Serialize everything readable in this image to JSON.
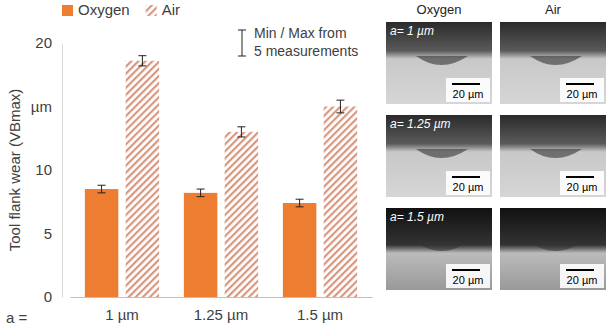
{
  "chart_data": {
    "type": "bar",
    "y_label": "Tool flank wear (VBmax)",
    "x_label": "a =",
    "categories": [
      "1 µm",
      "1.25 µm",
      "1.5 µm"
    ],
    "series": [
      {
        "name": "Oxygen",
        "color": "#ed7d31",
        "values": [
          8.5,
          8.2,
          7.4
        ],
        "errors": [
          0.3,
          0.3,
          0.3
        ]
      },
      {
        "name": "Air",
        "color": "#d9977f",
        "values": [
          18.6,
          13.0,
          15.0
        ],
        "errors": [
          0.4,
          0.4,
          0.5
        ]
      }
    ],
    "annotation": [
      "Min / Max from",
      "5 measurements"
    ],
    "ylim": [
      0,
      20
    ],
    "yticks": [
      0,
      5,
      10,
      {
        "value": 15,
        "label": "µm"
      },
      20
    ],
    "grid": false,
    "legend": "top"
  },
  "micrographs": {
    "columns": [
      "Oxygen",
      "Air"
    ],
    "rows": [
      {
        "label": "a= 1 µm",
        "scale_bars": [
          "20 µm",
          "20 µm"
        ]
      },
      {
        "label": "a= 1.25 µm",
        "scale_bars": [
          "20 µm",
          "20 µm"
        ]
      },
      {
        "label": "a= 1.5 µm",
        "scale_bars": [
          "20 µm",
          "20 µm"
        ]
      }
    ]
  }
}
